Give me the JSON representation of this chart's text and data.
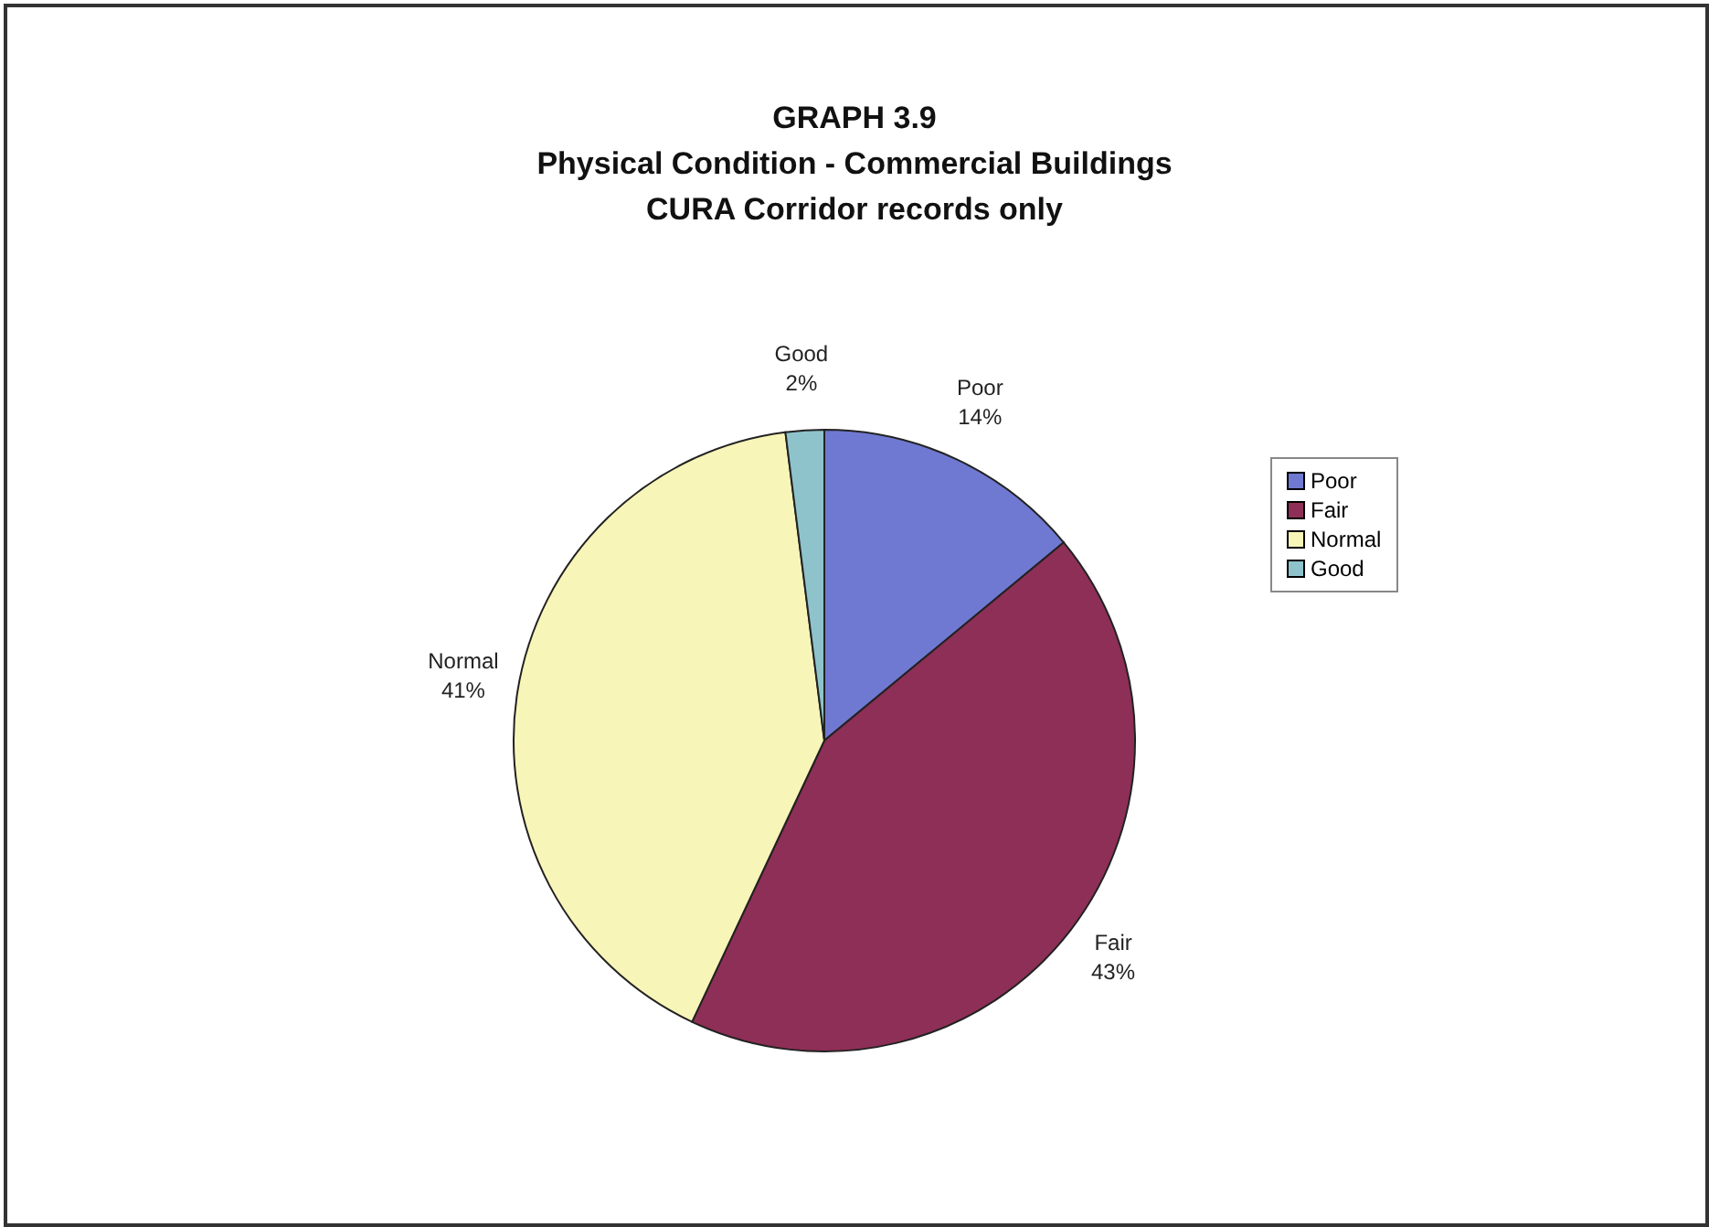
{
  "chart_data": {
    "type": "pie",
    "title": "GRAPH 3.9\nPhysical Condition - Commercial Buildings\nCURA Corridor records only",
    "categories": [
      "Poor",
      "Fair",
      "Normal",
      "Good"
    ],
    "values": [
      14,
      43,
      41,
      2
    ],
    "value_labels": [
      "14%",
      "43%",
      "41%",
      "2%"
    ],
    "colors": [
      "#6f79d2",
      "#8e2f57",
      "#f8f5b8",
      "#8ec3cb"
    ],
    "legend": "top right"
  }
}
